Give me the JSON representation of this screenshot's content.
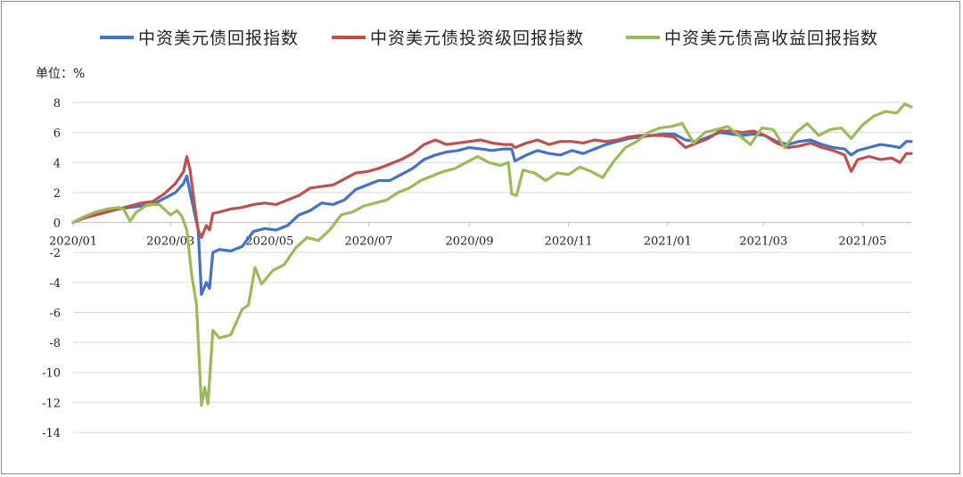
{
  "chart_data": {
    "type": "line",
    "title": "",
    "unit_label": "单位：%",
    "xlabel": "",
    "ylabel": "",
    "ylim": [
      -14,
      8
    ],
    "yticks": [
      8,
      6,
      4,
      2,
      0,
      -2,
      -4,
      -6,
      -8,
      -10,
      -12,
      -14
    ],
    "xlim": [
      "2020-01-01",
      "2021-05-31"
    ],
    "xticks": [
      {
        "date": "2020-01-01",
        "label": "2020/01"
      },
      {
        "date": "2020-03-01",
        "label": "2020/03"
      },
      {
        "date": "2020-05-01",
        "label": "2020/05"
      },
      {
        "date": "2020-07-01",
        "label": "2020/07"
      },
      {
        "date": "2020-09-01",
        "label": "2020/09"
      },
      {
        "date": "2020-11-01",
        "label": "2020/11"
      },
      {
        "date": "2021-01-01",
        "label": "2021/01"
      },
      {
        "date": "2021-03-01",
        "label": "2021/03"
      },
      {
        "date": "2021-05-01",
        "label": "2021/05"
      }
    ],
    "grid": "horizontal",
    "legend_position": "top",
    "series": [
      {
        "name": "中资美元债回报指数",
        "color": "#4472c4",
        "points": [
          [
            "2020-01-01",
            0.0
          ],
          [
            "2020-01-08",
            0.4
          ],
          [
            "2020-01-15",
            0.6
          ],
          [
            "2020-01-22",
            0.8
          ],
          [
            "2020-01-29",
            0.9
          ],
          [
            "2020-02-05",
            1.0
          ],
          [
            "2020-02-12",
            1.1
          ],
          [
            "2020-02-19",
            1.2
          ],
          [
            "2020-02-26",
            1.6
          ],
          [
            "2020-03-04",
            2.0
          ],
          [
            "2020-03-09",
            2.6
          ],
          [
            "2020-03-11",
            3.1
          ],
          [
            "2020-03-13",
            2.0
          ],
          [
            "2020-03-16",
            0.5
          ],
          [
            "2020-03-18",
            -0.5
          ],
          [
            "2020-03-20",
            -4.8
          ],
          [
            "2020-03-23",
            -4.0
          ],
          [
            "2020-03-25",
            -4.4
          ],
          [
            "2020-03-27",
            -2.0
          ],
          [
            "2020-03-31",
            -1.8
          ],
          [
            "2020-04-07",
            -1.9
          ],
          [
            "2020-04-14",
            -1.6
          ],
          [
            "2020-04-21",
            -0.6
          ],
          [
            "2020-04-28",
            -0.4
          ],
          [
            "2020-05-05",
            -0.5
          ],
          [
            "2020-05-12",
            -0.2
          ],
          [
            "2020-05-19",
            0.5
          ],
          [
            "2020-05-26",
            0.8
          ],
          [
            "2020-06-02",
            1.3
          ],
          [
            "2020-06-09",
            1.2
          ],
          [
            "2020-06-16",
            1.5
          ],
          [
            "2020-06-23",
            2.2
          ],
          [
            "2020-06-30",
            2.5
          ],
          [
            "2020-07-07",
            2.8
          ],
          [
            "2020-07-14",
            2.8
          ],
          [
            "2020-07-21",
            3.2
          ],
          [
            "2020-07-28",
            3.6
          ],
          [
            "2020-08-04",
            4.2
          ],
          [
            "2020-08-11",
            4.5
          ],
          [
            "2020-08-18",
            4.7
          ],
          [
            "2020-08-25",
            4.8
          ],
          [
            "2020-09-01",
            5.0
          ],
          [
            "2020-09-08",
            4.9
          ],
          [
            "2020-09-15",
            4.8
          ],
          [
            "2020-09-22",
            4.9
          ],
          [
            "2020-09-27",
            4.9
          ],
          [
            "2020-09-29",
            4.1
          ],
          [
            "2020-10-06",
            4.5
          ],
          [
            "2020-10-13",
            4.8
          ],
          [
            "2020-10-20",
            4.6
          ],
          [
            "2020-10-27",
            4.5
          ],
          [
            "2020-11-03",
            4.8
          ],
          [
            "2020-11-10",
            4.6
          ],
          [
            "2020-11-17",
            4.9
          ],
          [
            "2020-11-24",
            5.2
          ],
          [
            "2020-12-01",
            5.4
          ],
          [
            "2020-12-08",
            5.6
          ],
          [
            "2020-12-15",
            5.7
          ],
          [
            "2020-12-22",
            5.8
          ],
          [
            "2020-12-29",
            5.9
          ],
          [
            "2021-01-05",
            5.9
          ],
          [
            "2021-01-12",
            5.5
          ],
          [
            "2021-01-19",
            5.4
          ],
          [
            "2021-01-26",
            5.7
          ],
          [
            "2021-02-02",
            6.0
          ],
          [
            "2021-02-09",
            5.9
          ],
          [
            "2021-02-16",
            5.8
          ],
          [
            "2021-02-23",
            5.9
          ],
          [
            "2021-03-02",
            5.8
          ],
          [
            "2021-03-09",
            5.4
          ],
          [
            "2021-03-16",
            5.2
          ],
          [
            "2021-03-23",
            5.4
          ],
          [
            "2021-03-30",
            5.5
          ],
          [
            "2021-04-06",
            5.2
          ],
          [
            "2021-04-13",
            5.0
          ],
          [
            "2021-04-20",
            4.9
          ],
          [
            "2021-04-24",
            4.5
          ],
          [
            "2021-04-28",
            4.8
          ],
          [
            "2021-05-05",
            5.0
          ],
          [
            "2021-05-12",
            5.2
          ],
          [
            "2021-05-19",
            5.1
          ],
          [
            "2021-05-24",
            5.0
          ],
          [
            "2021-05-28",
            5.4
          ],
          [
            "2021-05-31",
            5.4
          ]
        ]
      },
      {
        "name": "中资美元债投资级回报指数",
        "color": "#c0504d",
        "points": [
          [
            "2020-01-01",
            0.0
          ],
          [
            "2020-01-08",
            0.3
          ],
          [
            "2020-01-15",
            0.5
          ],
          [
            "2020-01-22",
            0.7
          ],
          [
            "2020-01-29",
            0.9
          ],
          [
            "2020-02-05",
            1.1
          ],
          [
            "2020-02-12",
            1.3
          ],
          [
            "2020-02-19",
            1.4
          ],
          [
            "2020-02-26",
            1.9
          ],
          [
            "2020-03-04",
            2.6
          ],
          [
            "2020-03-09",
            3.4
          ],
          [
            "2020-03-11",
            4.4
          ],
          [
            "2020-03-13",
            3.5
          ],
          [
            "2020-03-16",
            1.0
          ],
          [
            "2020-03-18",
            -0.5
          ],
          [
            "2020-03-20",
            -1.0
          ],
          [
            "2020-03-23",
            -0.2
          ],
          [
            "2020-03-25",
            -0.5
          ],
          [
            "2020-03-27",
            0.6
          ],
          [
            "2020-03-31",
            0.7
          ],
          [
            "2020-04-07",
            0.9
          ],
          [
            "2020-04-14",
            1.0
          ],
          [
            "2020-04-21",
            1.2
          ],
          [
            "2020-04-28",
            1.3
          ],
          [
            "2020-05-05",
            1.2
          ],
          [
            "2020-05-12",
            1.5
          ],
          [
            "2020-05-19",
            1.8
          ],
          [
            "2020-05-26",
            2.3
          ],
          [
            "2020-06-02",
            2.4
          ],
          [
            "2020-06-09",
            2.5
          ],
          [
            "2020-06-16",
            2.9
          ],
          [
            "2020-06-23",
            3.3
          ],
          [
            "2020-06-30",
            3.4
          ],
          [
            "2020-07-07",
            3.6
          ],
          [
            "2020-07-14",
            3.9
          ],
          [
            "2020-07-21",
            4.2
          ],
          [
            "2020-07-28",
            4.6
          ],
          [
            "2020-08-04",
            5.2
          ],
          [
            "2020-08-11",
            5.5
          ],
          [
            "2020-08-18",
            5.2
          ],
          [
            "2020-08-25",
            5.3
          ],
          [
            "2020-09-01",
            5.4
          ],
          [
            "2020-09-08",
            5.5
          ],
          [
            "2020-09-15",
            5.3
          ],
          [
            "2020-09-22",
            5.2
          ],
          [
            "2020-09-27",
            5.2
          ],
          [
            "2020-09-29",
            5.0
          ],
          [
            "2020-10-06",
            5.3
          ],
          [
            "2020-10-13",
            5.5
          ],
          [
            "2020-10-20",
            5.2
          ],
          [
            "2020-10-27",
            5.4
          ],
          [
            "2020-11-03",
            5.4
          ],
          [
            "2020-11-10",
            5.3
          ],
          [
            "2020-11-17",
            5.5
          ],
          [
            "2020-11-24",
            5.4
          ],
          [
            "2020-12-01",
            5.5
          ],
          [
            "2020-12-08",
            5.7
          ],
          [
            "2020-12-15",
            5.8
          ],
          [
            "2020-12-22",
            5.8
          ],
          [
            "2020-12-29",
            5.8
          ],
          [
            "2021-01-05",
            5.7
          ],
          [
            "2021-01-12",
            5.0
          ],
          [
            "2021-01-19",
            5.3
          ],
          [
            "2021-01-26",
            5.6
          ],
          [
            "2021-02-02",
            6.1
          ],
          [
            "2021-02-09",
            6.1
          ],
          [
            "2021-02-16",
            6.0
          ],
          [
            "2021-02-23",
            6.1
          ],
          [
            "2021-03-02",
            5.8
          ],
          [
            "2021-03-09",
            5.3
          ],
          [
            "2021-03-16",
            5.0
          ],
          [
            "2021-03-23",
            5.1
          ],
          [
            "2021-03-30",
            5.3
          ],
          [
            "2021-04-06",
            5.0
          ],
          [
            "2021-04-13",
            4.8
          ],
          [
            "2021-04-20",
            4.5
          ],
          [
            "2021-04-24",
            3.4
          ],
          [
            "2021-04-28",
            4.2
          ],
          [
            "2021-05-05",
            4.4
          ],
          [
            "2021-05-12",
            4.2
          ],
          [
            "2021-05-19",
            4.3
          ],
          [
            "2021-05-24",
            4.0
          ],
          [
            "2021-05-28",
            4.6
          ],
          [
            "2021-05-31",
            4.6
          ]
        ]
      },
      {
        "name": "中资美元债高收益回报指数",
        "color": "#9bbb59",
        "points": [
          [
            "2020-01-01",
            0.0
          ],
          [
            "2020-01-08",
            0.4
          ],
          [
            "2020-01-15",
            0.7
          ],
          [
            "2020-01-22",
            0.9
          ],
          [
            "2020-01-29",
            1.0
          ],
          [
            "2020-02-01",
            0.9
          ],
          [
            "2020-02-05",
            0.1
          ],
          [
            "2020-02-09",
            0.7
          ],
          [
            "2020-02-16",
            1.2
          ],
          [
            "2020-02-23",
            1.2
          ],
          [
            "2020-03-01",
            0.5
          ],
          [
            "2020-03-05",
            0.8
          ],
          [
            "2020-03-08",
            0.4
          ],
          [
            "2020-03-11",
            -0.5
          ],
          [
            "2020-03-14",
            -3.5
          ],
          [
            "2020-03-17",
            -5.5
          ],
          [
            "2020-03-20",
            -12.2
          ],
          [
            "2020-03-22",
            -11.0
          ],
          [
            "2020-03-24",
            -12.1
          ],
          [
            "2020-03-27",
            -7.2
          ],
          [
            "2020-03-31",
            -7.7
          ],
          [
            "2020-04-07",
            -7.5
          ],
          [
            "2020-04-14",
            -5.8
          ],
          [
            "2020-04-18",
            -5.5
          ],
          [
            "2020-04-22",
            -3.0
          ],
          [
            "2020-04-26",
            -4.1
          ],
          [
            "2020-05-03",
            -3.2
          ],
          [
            "2020-05-10",
            -2.8
          ],
          [
            "2020-05-17",
            -1.7
          ],
          [
            "2020-05-24",
            -1.0
          ],
          [
            "2020-05-31",
            -1.2
          ],
          [
            "2020-06-07",
            -0.5
          ],
          [
            "2020-06-14",
            0.5
          ],
          [
            "2020-06-21",
            0.7
          ],
          [
            "2020-06-28",
            1.1
          ],
          [
            "2020-07-05",
            1.3
          ],
          [
            "2020-07-12",
            1.5
          ],
          [
            "2020-07-19",
            2.0
          ],
          [
            "2020-07-26",
            2.3
          ],
          [
            "2020-08-02",
            2.8
          ],
          [
            "2020-08-09",
            3.1
          ],
          [
            "2020-08-16",
            3.4
          ],
          [
            "2020-08-23",
            3.6
          ],
          [
            "2020-08-30",
            4.0
          ],
          [
            "2020-09-06",
            4.4
          ],
          [
            "2020-09-13",
            4.0
          ],
          [
            "2020-09-20",
            3.8
          ],
          [
            "2020-09-25",
            4.0
          ],
          [
            "2020-09-27",
            1.9
          ],
          [
            "2020-09-30",
            1.8
          ],
          [
            "2020-10-04",
            3.5
          ],
          [
            "2020-10-11",
            3.3
          ],
          [
            "2020-10-18",
            2.8
          ],
          [
            "2020-10-25",
            3.3
          ],
          [
            "2020-11-01",
            3.2
          ],
          [
            "2020-11-08",
            3.7
          ],
          [
            "2020-11-15",
            3.4
          ],
          [
            "2020-11-22",
            3.0
          ],
          [
            "2020-11-29",
            4.1
          ],
          [
            "2020-12-06",
            5.0
          ],
          [
            "2020-12-13",
            5.4
          ],
          [
            "2020-12-20",
            6.0
          ],
          [
            "2020-12-27",
            6.3
          ],
          [
            "2021-01-03",
            6.4
          ],
          [
            "2021-01-10",
            6.6
          ],
          [
            "2021-01-17",
            5.3
          ],
          [
            "2021-01-24",
            6.0
          ],
          [
            "2021-01-31",
            6.2
          ],
          [
            "2021-02-07",
            6.4
          ],
          [
            "2021-02-14",
            5.8
          ],
          [
            "2021-02-21",
            5.2
          ],
          [
            "2021-02-28",
            6.3
          ],
          [
            "2021-03-07",
            6.2
          ],
          [
            "2021-03-14",
            5.0
          ],
          [
            "2021-03-21",
            6.0
          ],
          [
            "2021-03-28",
            6.6
          ],
          [
            "2021-04-04",
            5.8
          ],
          [
            "2021-04-11",
            6.2
          ],
          [
            "2021-04-18",
            6.3
          ],
          [
            "2021-04-24",
            5.6
          ],
          [
            "2021-05-01",
            6.5
          ],
          [
            "2021-05-08",
            7.1
          ],
          [
            "2021-05-15",
            7.4
          ],
          [
            "2021-05-22",
            7.3
          ],
          [
            "2021-05-27",
            7.9
          ],
          [
            "2021-05-31",
            7.7
          ]
        ]
      }
    ]
  }
}
